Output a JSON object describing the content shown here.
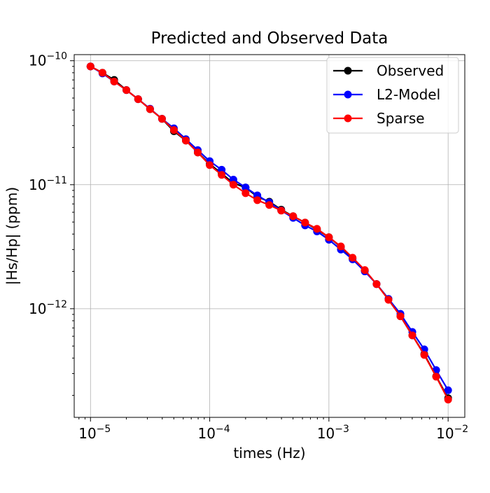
{
  "chart_data": {
    "type": "line",
    "title": "Predicted and Observed Data",
    "xlabel": "times (Hz)",
    "ylabel": "|Hs/Hp| (ppm)",
    "xscale": "log",
    "yscale": "log",
    "xlim": [
      7.3e-06,
      0.0138
    ],
    "ylim": [
      1.33e-13,
      1.12e-10
    ],
    "grid": true,
    "legend": "top-right",
    "x_ticks": [
      {
        "base": "10",
        "exp": "−5",
        "value": 1e-05
      },
      {
        "base": "10",
        "exp": "−4",
        "value": 0.0001
      },
      {
        "base": "10",
        "exp": "−3",
        "value": 0.001
      },
      {
        "base": "10",
        "exp": "−2",
        "value": 0.01
      }
    ],
    "y_ticks": [
      {
        "base": "10",
        "exp": "−10",
        "value": 1e-10
      },
      {
        "base": "10",
        "exp": "−11",
        "value": 1e-11
      },
      {
        "base": "10",
        "exp": "−12",
        "value": 1e-12
      }
    ],
    "x": [
      1e-05,
      1.26e-05,
      1.58e-05,
      2e-05,
      2.51e-05,
      3.16e-05,
      3.98e-05,
      5.01e-05,
      6.31e-05,
      7.94e-05,
      0.0001,
      0.000126,
      0.000158,
      0.0002,
      0.000251,
      0.000316,
      0.000398,
      0.000501,
      0.000631,
      0.000794,
      0.001,
      0.00126,
      0.00158,
      0.002,
      0.00251,
      0.00316,
      0.00398,
      0.00501,
      0.00631,
      0.00794,
      0.01
    ],
    "series": [
      {
        "name": "Observed",
        "color": "#000000",
        "values": [
          9e-11,
          8e-11,
          7e-11,
          5.8e-11,
          4.9e-11,
          4.07e-11,
          3.4e-11,
          2.7e-11,
          2.27e-11,
          1.82e-11,
          1.47e-11,
          1.23e-11,
          1.03e-11,
          9.5e-12,
          8e-12,
          7.3e-12,
          6.3e-12,
          5.57e-12,
          4.95e-12,
          4.35e-12,
          3.77e-12,
          3.15e-12,
          2.55e-12,
          2.03e-12,
          1.58e-12,
          1.2e-12,
          8.7e-13,
          6.1e-13,
          4.3e-13,
          2.85e-13,
          1.9e-13
        ]
      },
      {
        "name": "L2-Model",
        "color": "#0000ff",
        "values": [
          9e-11,
          7.9e-11,
          6.8e-11,
          5.8e-11,
          4.9e-11,
          4.1e-11,
          3.4e-11,
          2.85e-11,
          2.33e-11,
          1.9e-11,
          1.55e-11,
          1.32e-11,
          1.1e-11,
          9.5e-12,
          8.2e-12,
          7.2e-12,
          6.2e-12,
          5.4e-12,
          4.7e-12,
          4.2e-12,
          3.6e-12,
          3e-12,
          2.5e-12,
          2e-12,
          1.58e-12,
          1.2e-12,
          9.1e-13,
          6.5e-13,
          4.7e-13,
          3.2e-13,
          2.2e-13
        ]
      },
      {
        "name": "Sparse",
        "color": "#ff0000",
        "values": [
          9e-11,
          8e-11,
          6.8e-11,
          5.8e-11,
          4.9e-11,
          4.07e-11,
          3.4e-11,
          2.76e-11,
          2.27e-11,
          1.82e-11,
          1.44e-11,
          1.2e-11,
          1e-11,
          8.55e-12,
          7.5e-12,
          6.86e-12,
          6.18e-12,
          5.57e-12,
          4.95e-12,
          4.41e-12,
          3.77e-12,
          3.18e-12,
          2.58e-12,
          2.05e-12,
          1.58e-12,
          1.18e-12,
          8.7e-13,
          6.1e-13,
          4.24e-13,
          2.83e-13,
          1.85e-13
        ]
      }
    ]
  }
}
